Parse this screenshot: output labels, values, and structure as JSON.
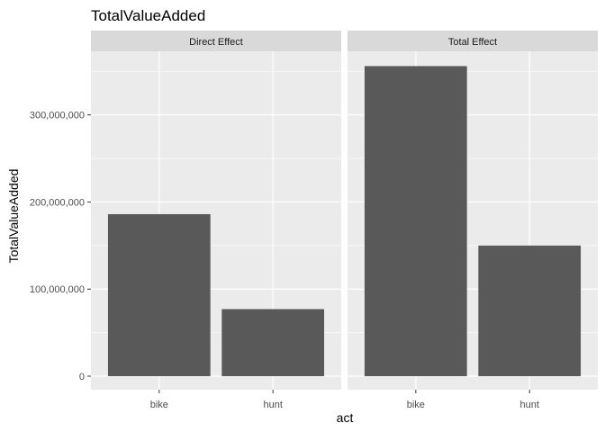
{
  "chart_data": {
    "type": "bar",
    "title": "TotalValueAdded",
    "xlabel": "act",
    "ylabel": "TotalValueAdded",
    "categories": [
      "bike",
      "hunt"
    ],
    "facets": [
      {
        "name": "Direct Effect",
        "values": [
          186000000,
          77000000
        ]
      },
      {
        "name": "Total Effect",
        "values": [
          356000000,
          150000000
        ]
      }
    ],
    "ylim": [
      0,
      373000000
    ],
    "yticks": [
      0,
      100000000,
      200000000,
      300000000
    ],
    "ytick_labels": [
      "0",
      "100,000,000",
      "200,000,000",
      "300,000,000"
    ],
    "grid": true,
    "colors": {
      "bar": "#595959",
      "panel_bg": "#ebebeb",
      "strip_bg": "#d9d9d9",
      "grid": "#ffffff"
    }
  }
}
